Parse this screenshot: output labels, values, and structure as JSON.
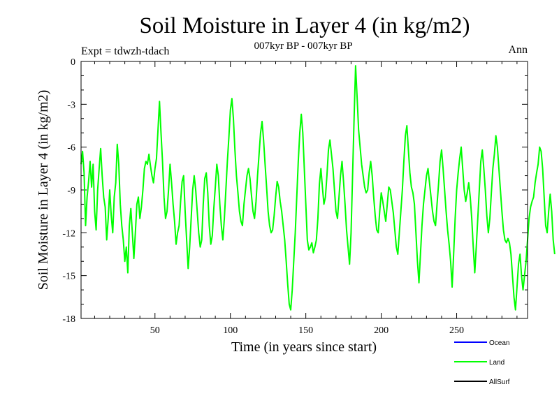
{
  "chart_data": {
    "type": "line",
    "title": "Soil Moisture in Layer 4 (in kg/m2)",
    "subtitle": "007kyr BP - 007kyr BP",
    "experiment": "Expt = tdwzh-tdach",
    "season": "Ann",
    "xlabel": "Time (in years since start)",
    "ylabel": "Soil Moisture in Layer 4 (in kg/m2)",
    "xlim": [
      1,
      297
    ],
    "ylim": [
      -18,
      0
    ],
    "x_ticks": [
      50,
      100,
      150,
      200,
      250
    ],
    "y_ticks": [
      0,
      -3,
      -6,
      -9,
      -12,
      -15,
      -18
    ],
    "x_tick_labels": [
      "50",
      "100",
      "150",
      "200",
      "250"
    ],
    "y_tick_labels": [
      "0",
      "-3",
      "-6",
      "-9",
      "-12",
      "-15",
      "-18"
    ],
    "legend": [
      {
        "name": "Ocean",
        "color": "#0000ff"
      },
      {
        "name": "Land",
        "color": "#00ff00"
      },
      {
        "name": "AllSurf",
        "color": "#000000"
      }
    ],
    "series": [
      {
        "name": "Land",
        "color": "#00ff00",
        "x_start": 1,
        "x_step": 1,
        "values": [
          -7.2,
          -6.3,
          -7.8,
          -11.5,
          -9.5,
          -8.4,
          -7.0,
          -8.8,
          -7.2,
          -10.5,
          -11.8,
          -9.0,
          -7.5,
          -6.1,
          -8.0,
          -9.5,
          -10.2,
          -12.5,
          -11.0,
          -9.0,
          -10.8,
          -12.0,
          -9.5,
          -8.5,
          -5.8,
          -7.2,
          -10.0,
          -11.5,
          -12.5,
          -14.0,
          -13.0,
          -14.8,
          -11.5,
          -10.3,
          -12.0,
          -13.8,
          -12.0,
          -10.0,
          -9.5,
          -11.0,
          -10.2,
          -9.0,
          -7.5,
          -7.0,
          -7.2,
          -6.5,
          -7.3,
          -8.0,
          -8.5,
          -7.5,
          -6.8,
          -4.8,
          -2.8,
          -5.0,
          -7.0,
          -9.5,
          -11.0,
          -10.5,
          -9.0,
          -7.2,
          -8.5,
          -10.0,
          -11.2,
          -12.8,
          -12.0,
          -11.5,
          -9.8,
          -8.4,
          -8.0,
          -10.5,
          -12.5,
          -14.5,
          -13.0,
          -11.0,
          -9.0,
          -8.0,
          -9.0,
          -10.5,
          -12.0,
          -13.0,
          -12.5,
          -10.0,
          -8.2,
          -7.8,
          -9.2,
          -11.5,
          -12.8,
          -12.2,
          -10.3,
          -8.8,
          -7.2,
          -8.0,
          -10.0,
          -11.5,
          -12.5,
          -11.0,
          -9.0,
          -7.0,
          -5.3,
          -3.4,
          -2.6,
          -4.0,
          -6.2,
          -8.0,
          -9.2,
          -10.5,
          -11.2,
          -11.5,
          -10.0,
          -9.0,
          -8.0,
          -7.5,
          -8.2,
          -9.4,
          -10.5,
          -11.0,
          -9.8,
          -8.0,
          -6.5,
          -5.0,
          -4.2,
          -5.5,
          -7.2,
          -8.8,
          -10.5,
          -11.5,
          -12.0,
          -11.8,
          -10.8,
          -9.5,
          -8.4,
          -8.8,
          -9.8,
          -10.5,
          -11.5,
          -12.5,
          -14.0,
          -15.6,
          -17.0,
          -17.4,
          -16.0,
          -14.0,
          -12.0,
          -9.5,
          -7.0,
          -5.0,
          -3.7,
          -5.0,
          -7.5,
          -10.0,
          -12.5,
          -13.2,
          -13.0,
          -12.7,
          -13.4,
          -13.0,
          -12.5,
          -11.0,
          -8.6,
          -7.5,
          -8.8,
          -10.0,
          -9.5,
          -8.0,
          -6.2,
          -5.5,
          -6.5,
          -7.5,
          -9.0,
          -10.5,
          -11.0,
          -9.5,
          -8.0,
          -7.0,
          -8.4,
          -10.0,
          -11.8,
          -13.0,
          -14.2,
          -12.0,
          -8.0,
          -4.0,
          -0.3,
          -2.5,
          -4.8,
          -6.0,
          -7.2,
          -8.0,
          -8.8,
          -9.2,
          -9.0,
          -7.8,
          -7.0,
          -8.0,
          -9.5,
          -10.8,
          -11.8,
          -12.0,
          -10.5,
          -9.2,
          -9.8,
          -10.5,
          -11.2,
          -10.0,
          -8.8,
          -9.0,
          -9.8,
          -10.6,
          -11.8,
          -13.0,
          -13.5,
          -12.0,
          -10.5,
          -9.0,
          -7.0,
          -5.2,
          -4.5,
          -6.2,
          -7.8,
          -8.8,
          -9.2,
          -10.0,
          -12.0,
          -14.0,
          -15.5,
          -13.5,
          -11.5,
          -10.0,
          -9.0,
          -8.0,
          -7.5,
          -8.5,
          -9.5,
          -10.5,
          -11.2,
          -11.5,
          -10.0,
          -8.6,
          -7.0,
          -6.2,
          -7.5,
          -9.0,
          -10.5,
          -11.8,
          -12.8,
          -14.0,
          -15.8,
          -13.5,
          -11.0,
          -9.0,
          -7.8,
          -6.8,
          -6.0,
          -7.5,
          -9.0,
          -9.8,
          -9.2,
          -8.5,
          -9.5,
          -11.0,
          -13.0,
          -14.8,
          -13.0,
          -11.0,
          -9.0,
          -7.0,
          -6.2,
          -7.5,
          -9.0,
          -10.8,
          -12.0,
          -11.0,
          -9.2,
          -7.5,
          -6.5,
          -5.2,
          -6.0,
          -7.5,
          -9.0,
          -10.5,
          -11.8,
          -12.5,
          -12.7,
          -12.4,
          -12.7,
          -13.5,
          -15.0,
          -16.5,
          -17.4,
          -15.8,
          -14.2,
          -13.5,
          -15.0,
          -16.0,
          -15.0,
          -14.0,
          -12.5,
          -11.0,
          -10.2,
          -9.8,
          -9.5,
          -8.5,
          -7.8,
          -7.2,
          -6.0,
          -6.3,
          -7.5,
          -9.5,
          -11.5,
          -12.0,
          -10.5,
          -9.3,
          -10.5,
          -12.5,
          -13.5
        ]
      }
    ]
  }
}
